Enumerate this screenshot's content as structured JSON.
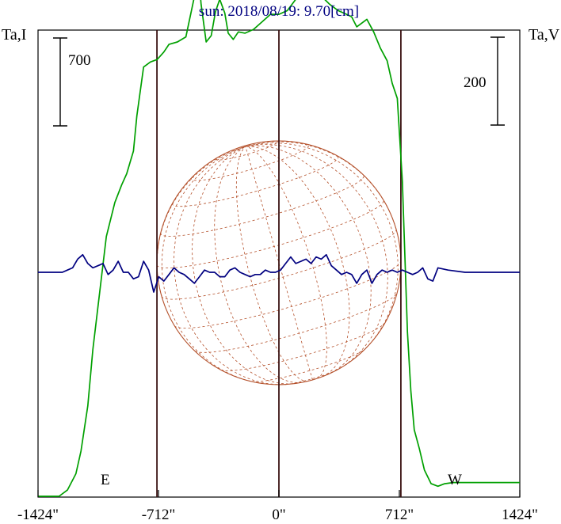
{
  "chart_data": {
    "type": "line",
    "title": "sun: 2018/08/19: 9.70[cm]",
    "ylabel_left": "Ta,I",
    "ylabel_right": "Ta,V",
    "xlim": [
      -1424,
      1424
    ],
    "x_ticks": [
      {
        "value": -1424,
        "label": "-1424\""
      },
      {
        "value": -712,
        "label": "-712\""
      },
      {
        "value": 0,
        "label": "0\""
      },
      {
        "value": 712,
        "label": "712\""
      },
      {
        "value": 1424,
        "label": "1424\""
      }
    ],
    "scale_bar_left": {
      "label": "700",
      "value": 700
    },
    "scale_bar_right": {
      "label": "200",
      "value": 200
    },
    "limb_markers": [
      {
        "label": "E",
        "x": -721
      },
      {
        "label": "W",
        "x": 721
      }
    ],
    "series": [
      {
        "key": "I",
        "color": "#00a000",
        "x": [
          -1424,
          -1300,
          -1250,
          -1200,
          -1170,
          -1130,
          -1100,
          -1060,
          -1020,
          -970,
          -930,
          -900,
          -880,
          -860,
          -840,
          -800,
          -760,
          -720,
          -700,
          -680,
          -650,
          -600,
          -550,
          -500,
          -480,
          -460,
          -430,
          -400,
          -375,
          -350,
          -320,
          -300,
          -270,
          -240,
          -200,
          -150,
          -100,
          -50,
          0,
          50,
          100,
          130,
          160,
          190,
          210,
          240,
          270,
          300,
          350,
          400,
          430,
          460,
          490,
          520,
          560,
          600,
          640,
          670,
          700,
          730,
          760,
          780,
          800,
          830,
          860,
          900,
          940,
          980,
          1030,
          1080,
          1130,
          1180,
          1250,
          1350,
          1424
        ],
        "y": [
          0,
          0,
          50,
          180,
          360,
          720,
          1170,
          1620,
          2070,
          2340,
          2480,
          2570,
          2660,
          2750,
          3030,
          3420,
          3460,
          3480,
          3510,
          3540,
          3600,
          3620,
          3660,
          3980,
          4230,
          3920,
          3620,
          3670,
          3860,
          3960,
          3850,
          3690,
          3640,
          3700,
          3690,
          3720,
          3780,
          3840,
          3840,
          3870,
          3960,
          4160,
          4430,
          4490,
          4320,
          4080,
          3960,
          3920,
          3870,
          3840,
          3820,
          3740,
          3770,
          3800,
          3700,
          3570,
          3470,
          3290,
          3170,
          2510,
          1310,
          840,
          530,
          380,
          210,
          100,
          80,
          100,
          110,
          110,
          110,
          110,
          110,
          110,
          110
        ]
      },
      {
        "key": "V",
        "color": "#000080",
        "x": [
          -1424,
          -1310,
          -1280,
          -1250,
          -1220,
          -1190,
          -1160,
          -1130,
          -1100,
          -1070,
          -1040,
          -1010,
          -980,
          -950,
          -920,
          -890,
          -860,
          -830,
          -800,
          -770,
          -740,
          -710,
          -680,
          -650,
          -620,
          -590,
          -560,
          -530,
          -500,
          -470,
          -440,
          -410,
          -380,
          -350,
          -320,
          -290,
          -260,
          -230,
          -200,
          -170,
          -140,
          -110,
          -80,
          -50,
          -20,
          10,
          40,
          70,
          100,
          130,
          160,
          190,
          220,
          250,
          280,
          310,
          340,
          370,
          400,
          430,
          460,
          490,
          520,
          550,
          580,
          610,
          640,
          670,
          700,
          730,
          760,
          790,
          820,
          850,
          880,
          910,
          940,
          1000,
          1100,
          1250,
          1424
        ],
        "y": [
          0,
          0,
          0,
          5,
          10,
          30,
          40,
          20,
          10,
          15,
          20,
          -5,
          5,
          25,
          0,
          0,
          -15,
          -10,
          25,
          5,
          -45,
          -10,
          -20,
          -5,
          10,
          0,
          -5,
          -15,
          -25,
          -10,
          5,
          0,
          0,
          -10,
          -10,
          5,
          10,
          0,
          -5,
          -10,
          -5,
          -5,
          5,
          0,
          0,
          5,
          20,
          35,
          20,
          25,
          30,
          20,
          35,
          30,
          40,
          15,
          5,
          -5,
          0,
          -5,
          -25,
          -5,
          5,
          -25,
          -5,
          5,
          0,
          5,
          0,
          5,
          0,
          -5,
          0,
          10,
          -15,
          -20,
          10,
          5,
          0,
          0,
          0
        ]
      }
    ]
  },
  "colors": {
    "title": "#000080",
    "axis": "#000000",
    "limb_lines": "#3a1212",
    "sun_disk": "#b4502a",
    "grid": "#b4502a"
  }
}
